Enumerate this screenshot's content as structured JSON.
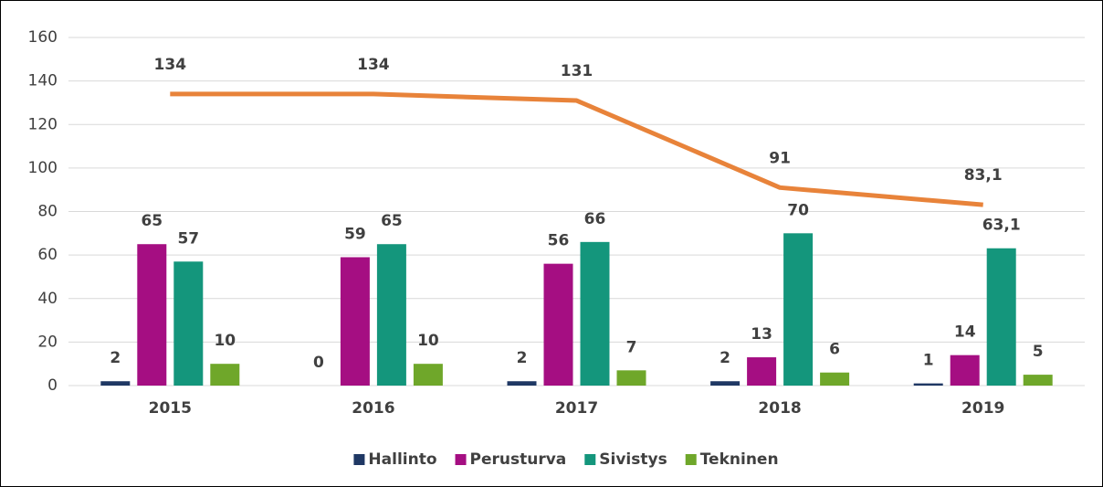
{
  "chart_data": {
    "type": "bar",
    "categories": [
      "2015",
      "2016",
      "2017",
      "2018",
      "2019"
    ],
    "series": [
      {
        "name": "Hallinto",
        "type": "bar",
        "color": "#1f3864",
        "values": [
          2,
          0,
          2,
          2,
          1
        ],
        "value_labels": [
          "2",
          "0",
          "2",
          "2",
          "1"
        ]
      },
      {
        "name": "Perusturva",
        "type": "bar",
        "color": "#a50e82",
        "values": [
          65,
          59,
          56,
          13,
          14
        ],
        "value_labels": [
          "65",
          "59",
          "56",
          "13",
          "14"
        ]
      },
      {
        "name": "Sivistys",
        "type": "bar",
        "color": "#14967c",
        "values": [
          57,
          65,
          66,
          70,
          63.1
        ],
        "value_labels": [
          "57",
          "65",
          "66",
          "70",
          "63,1"
        ]
      },
      {
        "name": "Tekninen",
        "type": "bar",
        "color": "#6fa72a",
        "values": [
          10,
          10,
          7,
          6,
          5
        ],
        "value_labels": [
          "10",
          "10",
          "7",
          "6",
          "5"
        ]
      },
      {
        "type": "line",
        "color": "#e8833a",
        "values": [
          134,
          134,
          131,
          91,
          83.1
        ],
        "value_labels": [
          "134",
          "134",
          "131",
          "91",
          "83,1"
        ]
      }
    ],
    "ylim": [
      0,
      160
    ],
    "yticks": [
      0,
      20,
      40,
      60,
      80,
      100,
      120,
      140,
      160
    ],
    "grid": true,
    "legend": "bottom"
  }
}
